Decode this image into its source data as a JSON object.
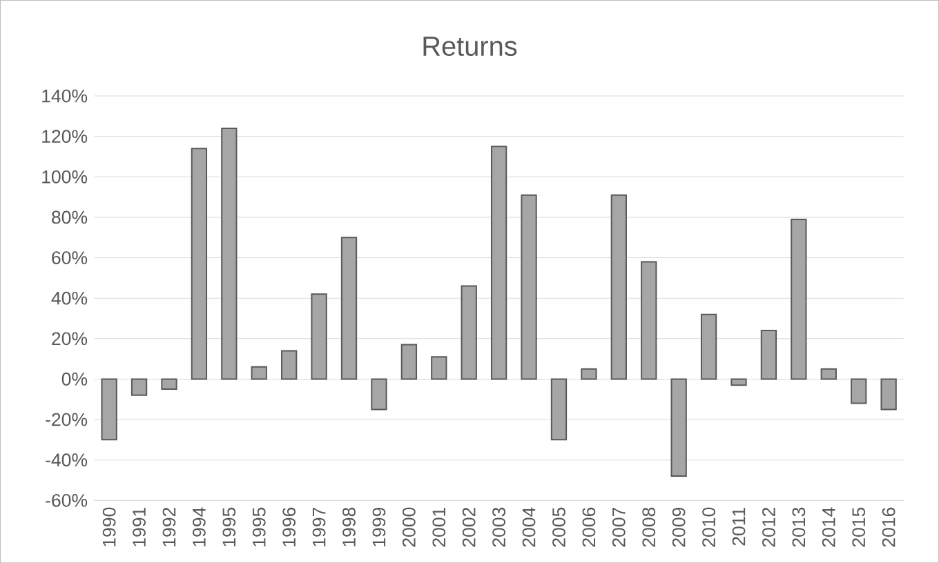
{
  "chart_data": {
    "type": "bar",
    "title": "Returns",
    "categories": [
      "1990",
      "1991",
      "1992",
      "1994",
      "1995",
      "1995",
      "1996",
      "1997",
      "1998",
      "1999",
      "2000",
      "2001",
      "2002",
      "2003",
      "2004",
      "2005",
      "2006",
      "2007",
      "2008",
      "2009",
      "2010",
      "2011",
      "2012",
      "2013",
      "2014",
      "2015",
      "2016"
    ],
    "values": [
      -30,
      -8,
      -5,
      114,
      124,
      6,
      14,
      42,
      70,
      -15,
      17,
      11,
      46,
      115,
      91,
      -30,
      5,
      91,
      58,
      -48,
      32,
      -3,
      24,
      79,
      5,
      -12,
      -15
    ],
    "color": "#a6a6a6",
    "ylim": [
      -60,
      140
    ],
    "yticks": [
      {
        "value": -60,
        "label": "-60%"
      },
      {
        "value": -40,
        "label": "-40%"
      },
      {
        "value": -20,
        "label": "-20%"
      },
      {
        "value": 0,
        "label": "0%"
      },
      {
        "value": 20,
        "label": "20%"
      },
      {
        "value": 40,
        "label": "40%"
      },
      {
        "value": 60,
        "label": "60%"
      },
      {
        "value": 80,
        "label": "80%"
      },
      {
        "value": 100,
        "label": "100%"
      },
      {
        "value": 120,
        "label": "120%"
      },
      {
        "value": 140,
        "label": "140%"
      }
    ],
    "grid": "y"
  }
}
